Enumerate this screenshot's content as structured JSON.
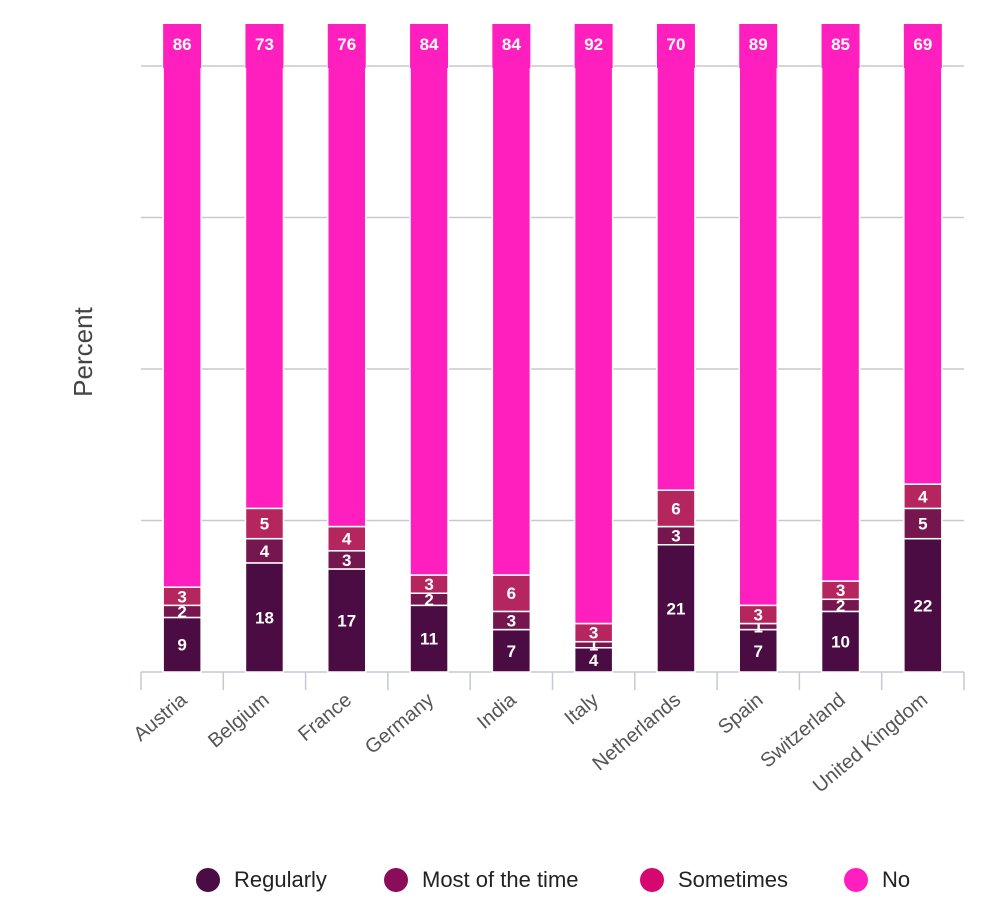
{
  "chart_data": {
    "type": "bar",
    "stacked": true,
    "ylabel": "Percent",
    "xlabel": "",
    "ylim": [
      0,
      100
    ],
    "grid": true,
    "legend_position": "bottom",
    "categories": [
      "Austria",
      "Belgium",
      "France",
      "Germany",
      "India",
      "Italy",
      "Netherlands",
      "Spain",
      "Switzerland",
      "United Kingdom"
    ],
    "series": [
      {
        "name": "Regularly",
        "color": "#4a0c42",
        "values": [
          9,
          18,
          17,
          11,
          7,
          4,
          21,
          7,
          10,
          22
        ]
      },
      {
        "name": "Most of the time",
        "color": "#75164f",
        "values": [
          2,
          4,
          3,
          2,
          3,
          1,
          3,
          1,
          2,
          5
        ]
      },
      {
        "name": "Sometimes",
        "color": "#b5265e",
        "values": [
          3,
          5,
          4,
          3,
          6,
          3,
          6,
          3,
          3,
          4
        ]
      },
      {
        "name": "No",
        "color": "#ff1fbe",
        "values": [
          86,
          73,
          76,
          84,
          84,
          92,
          70,
          89,
          85,
          69
        ]
      }
    ]
  },
  "legend": [
    {
      "label": "Regularly",
      "color": "#4a0c42"
    },
    {
      "label": "Most of the time",
      "color": "#8b0d5a"
    },
    {
      "label": "Sometimes",
      "color": "#d4086f"
    },
    {
      "label": "No",
      "color": "#ff1fbe"
    }
  ]
}
